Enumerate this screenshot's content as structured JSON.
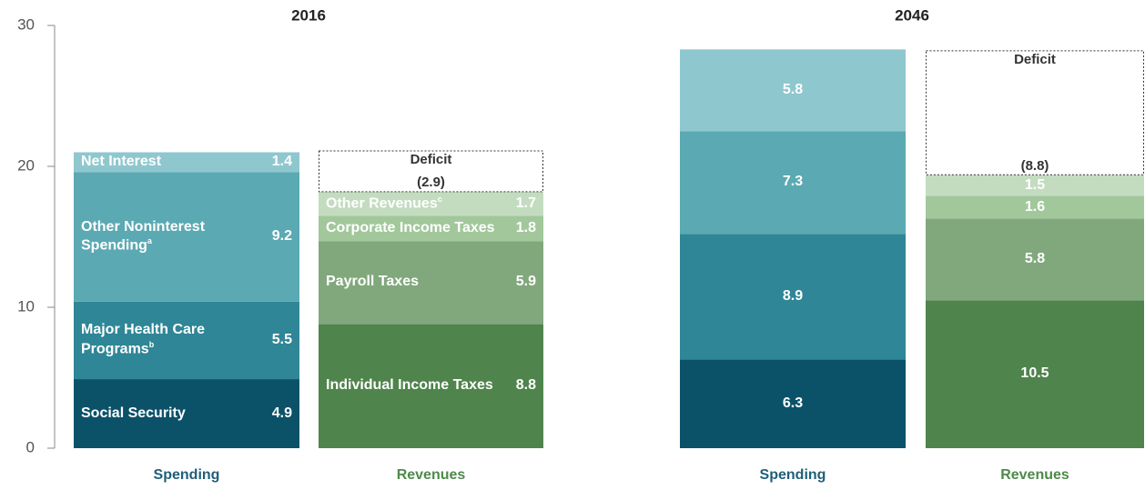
{
  "chart_data": {
    "type": "stacked_bar",
    "ylim": [
      0,
      30
    ],
    "yticks": [
      0,
      10,
      20,
      30
    ],
    "panels": [
      {
        "title": "2016",
        "bars": [
          {
            "name": "Spending",
            "color": "#1f5f7a",
            "segments": [
              {
                "name": "Social Security",
                "value": 4.9,
                "color": "#0b5269"
              },
              {
                "name": "Major Health Care Programs",
                "note": "b",
                "value": 5.5,
                "color": "#2f8696"
              },
              {
                "name": "Other Noninterest Spending",
                "note": "a",
                "value": 9.2,
                "color": "#5ba9b3"
              },
              {
                "name": "Net Interest",
                "value": 1.4,
                "color": "#8fc7cf"
              }
            ]
          },
          {
            "name": "Revenues",
            "color": "#4e8a4a",
            "segments": [
              {
                "name": "Individual Income Taxes",
                "value": 8.8,
                "color": "#4f844c"
              },
              {
                "name": "Payroll Taxes",
                "value": 5.9,
                "color": "#81a87c"
              },
              {
                "name": "Corporate Income Taxes",
                "value": 1.8,
                "color": "#a2c79b"
              },
              {
                "name": "Other Revenues",
                "note": "c",
                "value": 1.7,
                "color": "#c3dcc0"
              },
              {
                "name": "Deficit",
                "value": 2.9,
                "value_label": "(2.9)",
                "dashed": true,
                "color": "#ffffff"
              }
            ]
          }
        ]
      },
      {
        "title": "2046",
        "bars": [
          {
            "name": "Spending",
            "color": "#1f5f7a",
            "segments": [
              {
                "value": 6.3,
                "color": "#0b5269"
              },
              {
                "value": 8.9,
                "color": "#2f8696"
              },
              {
                "value": 7.3,
                "color": "#5ba9b3"
              },
              {
                "value": 5.8,
                "color": "#8fc7cf"
              }
            ]
          },
          {
            "name": "Revenues",
            "color": "#4e8a4a",
            "segments": [
              {
                "value": 10.5,
                "color": "#4f844c"
              },
              {
                "value": 5.8,
                "color": "#81a87c"
              },
              {
                "value": 1.6,
                "color": "#a2c79b"
              },
              {
                "value": 1.5,
                "color": "#c3dcc0"
              },
              {
                "name": "Deficit",
                "value": 8.8,
                "value_label": "(8.8)",
                "dashed": true,
                "color": "#ffffff"
              }
            ]
          }
        ]
      }
    ]
  }
}
